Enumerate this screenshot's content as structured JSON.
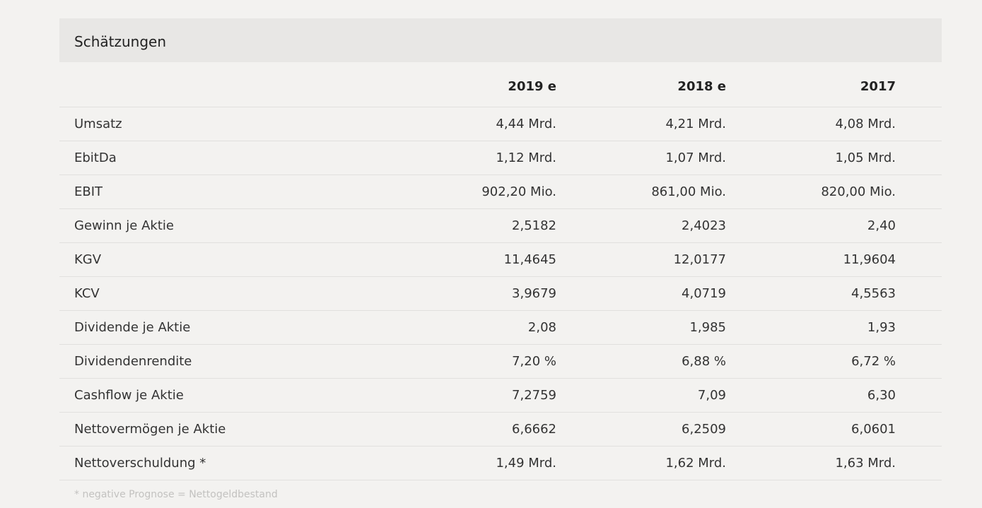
{
  "header": {
    "title": "Schätzungen"
  },
  "table": {
    "columns": [
      "2019 e",
      "2018 e",
      "2017"
    ],
    "rows": [
      [
        "Umsatz",
        "4,44 Mrd.",
        "4,21 Mrd.",
        "4,08 Mrd."
      ],
      [
        "EbitDa",
        "1,12 Mrd.",
        "1,07 Mrd.",
        "1,05 Mrd."
      ],
      [
        "EBIT",
        "902,20 Mio.",
        "861,00 Mio.",
        "820,00 Mio."
      ],
      [
        "Gewinn je Aktie",
        "2,5182",
        "2,4023",
        "2,40"
      ],
      [
        "KGV",
        "11,4645",
        "12,0177",
        "11,9604"
      ],
      [
        "KCV",
        "3,9679",
        "4,0719",
        "4,5563"
      ],
      [
        "Dividende je Aktie",
        "2,08",
        "1,985",
        "1,93"
      ],
      [
        "Dividendenrendite",
        "7,20 %",
        "6,88 %",
        "6,72 %"
      ],
      [
        "Cashflow je Aktie",
        "7,2759",
        "7,09",
        "6,30"
      ],
      [
        "Nettovermögen je Aktie",
        "6,6662",
        "6,2509",
        "6,0601"
      ],
      [
        "Nettoverschuldung *",
        "1,49 Mrd.",
        "1,62 Mrd.",
        "1,63 Mrd."
      ]
    ]
  },
  "footnote": "* negative Prognose = Nettogeldbestand"
}
